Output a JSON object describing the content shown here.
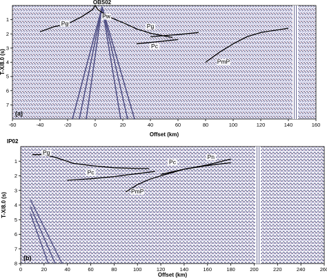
{
  "panels": [
    {
      "letter": "(a)",
      "station": "OBS02",
      "xlabel": "Offset (km)",
      "ylabel": "T-X/8.0 (s)",
      "xticks": [
        -60,
        -40,
        -20,
        0,
        20,
        40,
        60,
        80,
        100,
        120,
        140,
        160
      ],
      "yticks": [
        1,
        2,
        3,
        4,
        5,
        6,
        7
      ],
      "xrange": [
        -60,
        160
      ],
      "yrange": [
        0,
        8
      ],
      "phases": [
        {
          "label": "Pg",
          "at": [
            -22,
            1.4
          ]
        },
        {
          "label": "Pw",
          "at": [
            8,
            0.9
          ]
        },
        {
          "label": "Pg",
          "at": [
            40,
            1.6
          ]
        },
        {
          "label": "Pc",
          "at": [
            43,
            3.0
          ]
        },
        {
          "label": "PmP",
          "at": [
            93,
            4.1
          ]
        }
      ],
      "picks": [
        {
          "label": "Pg",
          "points": [
            [
              -40,
              1.85
            ],
            [
              -30,
              1.5
            ],
            [
              -20,
              1.3
            ],
            [
              -10,
              0.8
            ],
            [
              -2,
              0.3
            ],
            [
              0,
              0.0
            ],
            [
              2,
              0.3
            ],
            [
              10,
              0.8
            ],
            [
              20,
              1.2
            ],
            [
              30,
              1.65
            ],
            [
              40,
              1.95
            ],
            [
              50,
              2.15
            ],
            [
              56,
              2.25
            ]
          ]
        },
        {
          "label": "Pg",
          "points": [
            [
              40,
              2.2
            ],
            [
              60,
              2.05
            ],
            [
              75,
              1.9
            ]
          ]
        },
        {
          "label": "Pc",
          "points": [
            [
              30,
              2.7
            ],
            [
              45,
              2.55
            ],
            [
              60,
              2.4
            ]
          ]
        },
        {
          "label": "PmP",
          "points": [
            [
              80,
              4.0
            ],
            [
              90,
              3.3
            ],
            [
              100,
              2.7
            ],
            [
              110,
              2.2
            ],
            [
              120,
              1.9
            ],
            [
              130,
              1.75
            ],
            [
              140,
              1.6
            ]
          ]
        }
      ]
    },
    {
      "letter": "(b)",
      "station": "IP02",
      "xlabel": "Offset (km)",
      "ylabel": "T-X/8.0 (s)",
      "xticks": [
        0,
        20,
        40,
        60,
        80,
        100,
        120,
        140,
        160,
        180,
        200,
        220,
        240,
        260
      ],
      "yticks": [
        1,
        2,
        3,
        4,
        5,
        6,
        7,
        8
      ],
      "xrange": [
        0,
        260
      ],
      "yrange": [
        0,
        8
      ],
      "phases": [
        {
          "label": "Pg",
          "at": [
            22,
            0.55
          ]
        },
        {
          "label": "Pc",
          "at": [
            60,
            1.9
          ]
        },
        {
          "label": "PmP",
          "at": [
            100,
            3.2
          ]
        },
        {
          "label": "Pc",
          "at": [
            130,
            1.2
          ]
        },
        {
          "label": "Pn",
          "at": [
            163,
            0.85
          ]
        }
      ],
      "picks": [
        {
          "label": "Pg",
          "points": [
            [
              10,
              0.55
            ],
            [
              20,
              0.55
            ],
            [
              30,
              0.75
            ],
            [
              45,
              1.15
            ],
            [
              60,
              1.3
            ],
            [
              80,
              1.45
            ],
            [
              100,
              1.5
            ],
            [
              110,
              1.5
            ]
          ]
        },
        {
          "label": "Pc",
          "points": [
            [
              40,
              2.3
            ],
            [
              60,
              2.2
            ],
            [
              80,
              2.05
            ],
            [
              100,
              1.85
            ],
            [
              115,
              1.7
            ]
          ]
        },
        {
          "label": "PmP",
          "points": [
            [
              90,
              3.1
            ],
            [
              100,
              2.6
            ],
            [
              110,
              2.25
            ],
            [
              120,
              2.0
            ],
            [
              140,
              1.55
            ],
            [
              160,
              1.3
            ],
            [
              180,
              1.1
            ]
          ]
        },
        {
          "label": "Pn",
          "points": [
            [
              120,
              1.9
            ],
            [
              140,
              1.55
            ],
            [
              160,
              1.25
            ],
            [
              180,
              0.85
            ]
          ]
        }
      ]
    }
  ],
  "colors": {
    "trace_dark": "#2a2a6a",
    "trace_light": "#8f8fcf",
    "trace_warm": "#b55a6a",
    "background": "#ffffff",
    "pick": "#000000"
  }
}
